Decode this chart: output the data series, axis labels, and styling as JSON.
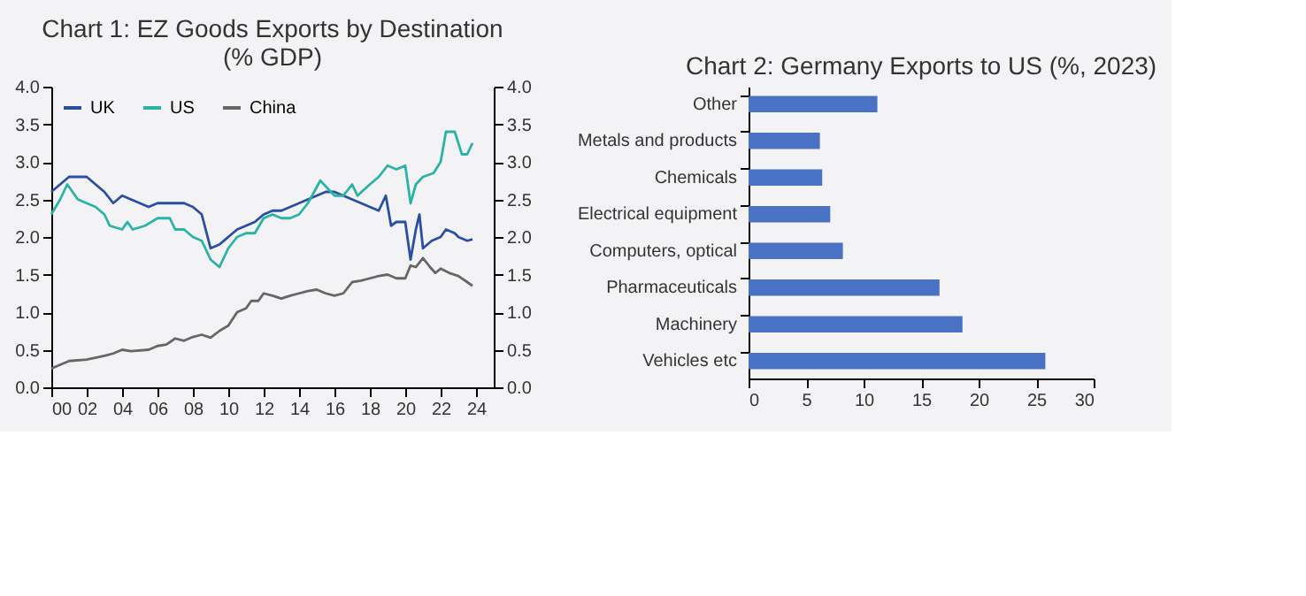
{
  "chart_data": [
    {
      "type": "line",
      "title": "Chart 1: EZ Goods Exports by Destination (% GDP)",
      "legend": "top left",
      "grid": false,
      "xlim": [
        2000,
        2025
      ],
      "xticks": [
        {
          "value": 2000,
          "label": "00"
        },
        {
          "value": 2002,
          "label": "02"
        },
        {
          "value": 2004,
          "label": "04"
        },
        {
          "value": 2006,
          "label": "06"
        },
        {
          "value": 2008,
          "label": "08"
        },
        {
          "value": 2010,
          "label": "10"
        },
        {
          "value": 2012,
          "label": "12"
        },
        {
          "value": 2014,
          "label": "14"
        },
        {
          "value": 2016,
          "label": "16"
        },
        {
          "value": 2018,
          "label": "18"
        },
        {
          "value": 2020,
          "label": "20"
        },
        {
          "value": 2022,
          "label": "22"
        },
        {
          "value": 2024,
          "label": "24"
        }
      ],
      "ylim": [
        0,
        4
      ],
      "yticks": [
        {
          "value": 0,
          "label": "0.0"
        },
        {
          "value": 0.5,
          "label": "0.5"
        },
        {
          "value": 1,
          "label": "1.0"
        },
        {
          "value": 1.5,
          "label": "1.5"
        },
        {
          "value": 2,
          "label": "2.0"
        },
        {
          "value": 2.5,
          "label": "2.5"
        },
        {
          "value": 3,
          "label": "3.0"
        },
        {
          "value": 3.5,
          "label": "3.5"
        },
        {
          "value": 4,
          "label": "4.0"
        }
      ],
      "y2lim": [
        0,
        4
      ],
      "y2ticks": [
        {
          "value": 0,
          "label": "0.0"
        },
        {
          "value": 0.5,
          "label": "0.5"
        },
        {
          "value": 1,
          "label": "1.0"
        },
        {
          "value": 1.5,
          "label": "1.5"
        },
        {
          "value": 2,
          "label": "2.0"
        },
        {
          "value": 2.5,
          "label": "2.5"
        },
        {
          "value": 3,
          "label": "3.0"
        },
        {
          "value": 3.5,
          "label": "3.5"
        },
        {
          "value": 4,
          "label": "4.0"
        }
      ],
      "series": [
        {
          "name": "UK",
          "color": "#2a4ea3",
          "x": [
            2000,
            2000.5,
            2001,
            2001.5,
            2002,
            2002.5,
            2003,
            2003.5,
            2004,
            2004.5,
            2005,
            2005.5,
            2006,
            2006.5,
            2007,
            2007.5,
            2008,
            2008.5,
            2009,
            2009.5,
            2010,
            2010.5,
            2011,
            2011.5,
            2012,
            2012.5,
            2013,
            2013.5,
            2014,
            2014.5,
            2015,
            2015.5,
            2016,
            2016.5,
            2017,
            2017.5,
            2018,
            2018.5,
            2018.9,
            2019.2,
            2019.5,
            2020,
            2020.3,
            2020.6,
            2020.8,
            2021,
            2021.5,
            2022,
            2022.3,
            2022.8,
            2023,
            2023.5,
            2023.8
          ],
          "values": [
            2.6,
            2.7,
            2.8,
            2.8,
            2.8,
            2.7,
            2.6,
            2.45,
            2.55,
            2.5,
            2.45,
            2.4,
            2.45,
            2.45,
            2.45,
            2.45,
            2.4,
            2.3,
            1.85,
            1.9,
            2.0,
            2.1,
            2.15,
            2.2,
            2.3,
            2.35,
            2.35,
            2.4,
            2.45,
            2.5,
            2.55,
            2.6,
            2.6,
            2.55,
            2.5,
            2.45,
            2.4,
            2.35,
            2.55,
            2.15,
            2.2,
            2.2,
            1.7,
            2.1,
            2.3,
            1.85,
            1.95,
            2.0,
            2.1,
            2.05,
            2.0,
            1.95,
            1.97
          ]
        },
        {
          "name": "US",
          "color": "#2ab3a6",
          "x": [
            2000,
            2000.5,
            2000.9,
            2001.5,
            2002,
            2002.5,
            2003,
            2003.3,
            2004,
            2004.3,
            2004.6,
            2005.3,
            2006,
            2006.7,
            2007,
            2007.5,
            2008,
            2008.5,
            2009,
            2009.5,
            2010,
            2010.5,
            2011,
            2011.5,
            2012,
            2012.5,
            2013,
            2013.5,
            2014,
            2014.5,
            2015.2,
            2016,
            2016.5,
            2017,
            2017.3,
            2018,
            2018.5,
            2019,
            2019.5,
            2020,
            2020.3,
            2020.6,
            2021,
            2021.6,
            2022,
            2022.3,
            2022.8,
            2023.2,
            2023.5,
            2023.8
          ],
          "values": [
            2.3,
            2.5,
            2.7,
            2.5,
            2.45,
            2.4,
            2.3,
            2.15,
            2.1,
            2.2,
            2.1,
            2.15,
            2.25,
            2.25,
            2.1,
            2.1,
            2.0,
            1.95,
            1.7,
            1.6,
            1.85,
            2.0,
            2.05,
            2.05,
            2.25,
            2.3,
            2.25,
            2.25,
            2.3,
            2.45,
            2.75,
            2.55,
            2.55,
            2.7,
            2.55,
            2.7,
            2.8,
            2.95,
            2.9,
            2.95,
            2.45,
            2.7,
            2.8,
            2.85,
            3.0,
            3.4,
            3.4,
            3.1,
            3.1,
            3.25
          ]
        },
        {
          "name": "China",
          "color": "#666666",
          "x": [
            2000,
            2000.5,
            2001,
            2002,
            2003,
            2003.5,
            2004,
            2004.5,
            2005.5,
            2006,
            2006.5,
            2007,
            2007.5,
            2008,
            2008.5,
            2009,
            2009.5,
            2010,
            2010.5,
            2011,
            2011.3,
            2011.7,
            2012,
            2012.5,
            2013,
            2013.5,
            2014,
            2014.5,
            2015,
            2015.5,
            2016,
            2016.5,
            2017,
            2017.5,
            2018,
            2018.5,
            2019,
            2019.5,
            2020,
            2020.3,
            2020.6,
            2021,
            2021.4,
            2021.7,
            2022,
            2022.5,
            2023,
            2023.5,
            2023.8
          ],
          "values": [
            0.25,
            0.3,
            0.35,
            0.37,
            0.42,
            0.45,
            0.5,
            0.48,
            0.5,
            0.55,
            0.57,
            0.65,
            0.62,
            0.67,
            0.7,
            0.66,
            0.75,
            0.82,
            1.0,
            1.05,
            1.15,
            1.15,
            1.25,
            1.22,
            1.18,
            1.22,
            1.25,
            1.28,
            1.3,
            1.25,
            1.22,
            1.25,
            1.4,
            1.42,
            1.45,
            1.48,
            1.5,
            1.45,
            1.45,
            1.62,
            1.6,
            1.72,
            1.6,
            1.52,
            1.58,
            1.52,
            1.48,
            1.4,
            1.35
          ]
        }
      ]
    },
    {
      "type": "bar",
      "orientation": "horizontal",
      "title": "Chart 2: Germany Exports to US (%, 2023)",
      "grid": false,
      "categories": [
        "Other",
        "Metals and products",
        "Chemicals",
        "Electrical equipment",
        "Computers, optical",
        "Pharmaceuticals",
        "Machinery",
        "Vehicles etc"
      ],
      "values": [
        11.2,
        6.2,
        6.4,
        7.1,
        8.2,
        16.6,
        18.6,
        25.8
      ],
      "color": "#4a72c4",
      "xlim": [
        0,
        30
      ],
      "xticks": [
        0,
        5,
        10,
        15,
        20,
        25,
        30
      ]
    }
  ]
}
